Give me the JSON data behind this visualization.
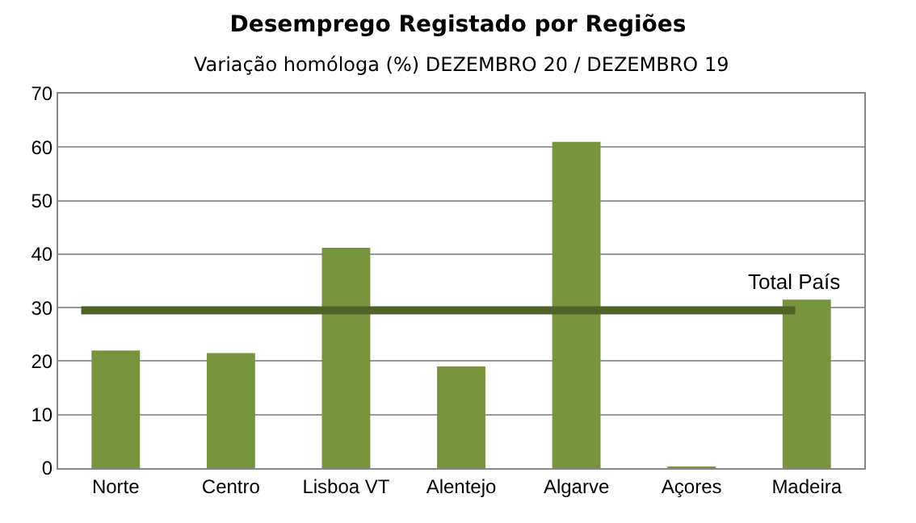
{
  "chart_data": {
    "type": "bar",
    "title": "Desemprego Registado por Regiões",
    "subtitle": "Variação homóloga (%) DEZEMBRO 20 / DEZEMBRO 19",
    "categories": [
      "Norte",
      "Centro",
      "Lisboa VT",
      "Alentejo",
      "Algarve",
      "Açores",
      "Madeira"
    ],
    "values": [
      22,
      21.5,
      41.2,
      19,
      61,
      0.3,
      31.5
    ],
    "color": "#77933c",
    "ylim": [
      0,
      70
    ],
    "yticks": [
      0,
      10,
      20,
      30,
      40,
      50,
      60,
      70
    ],
    "grid": "y",
    "ref_lines": [
      {
        "axis": "y",
        "value": 29.5,
        "label": "Total País",
        "color": "#4f6228"
      }
    ]
  }
}
